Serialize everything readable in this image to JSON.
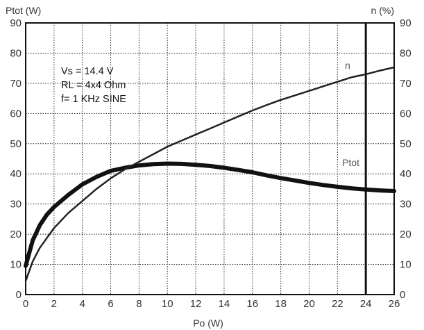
{
  "chart_data": {
    "type": "line",
    "title": "",
    "xlabel": "Po (W)",
    "ylabel_left": "Ptot (W)",
    "ylabel_right": "n (%)",
    "xlim": [
      0,
      26
    ],
    "ylim_left": [
      0,
      90
    ],
    "ylim_right": [
      0,
      90
    ],
    "x_ticks": [
      "0",
      "2",
      "4",
      "6",
      "8",
      "10",
      "12",
      "14",
      "16",
      "18",
      "20",
      "22",
      "24",
      "26"
    ],
    "y_ticks_left": [
      "0",
      "10",
      "20",
      "30",
      "40",
      "50",
      "60",
      "70",
      "80",
      "90"
    ],
    "y_ticks_right": [
      "0",
      "10",
      "20",
      "30",
      "40",
      "50",
      "60",
      "70",
      "80",
      "90"
    ],
    "grid": true,
    "grid_style": "dotted",
    "reference_line_x": 24,
    "annotations": [
      "Vs = 14.4 V",
      "RL = 4x4 Ohm",
      "f= 1 KHz SINE"
    ],
    "series": [
      {
        "name": "Ptot",
        "axis": "left",
        "color": "#111111",
        "points": [
          [
            0,
            9.5
          ],
          [
            0.5,
            18
          ],
          [
            1,
            23
          ],
          [
            1.5,
            26.5
          ],
          [
            2,
            29
          ],
          [
            3,
            33
          ],
          [
            4,
            36.5
          ],
          [
            5,
            39
          ],
          [
            6,
            41
          ],
          [
            7,
            42
          ],
          [
            8,
            42.8
          ],
          [
            9,
            43.2
          ],
          [
            10,
            43.4
          ],
          [
            11,
            43.3
          ],
          [
            12,
            43
          ],
          [
            13,
            42.6
          ],
          [
            14,
            42
          ],
          [
            15,
            41.3
          ],
          [
            16,
            40.5
          ],
          [
            17,
            39.5
          ],
          [
            18,
            38.6
          ],
          [
            19,
            37.8
          ],
          [
            20,
            37
          ],
          [
            21,
            36.3
          ],
          [
            22,
            35.7
          ],
          [
            23,
            35.2
          ],
          [
            24,
            34.8
          ],
          [
            25,
            34.5
          ],
          [
            26,
            34.3
          ]
        ]
      },
      {
        "name": "n",
        "axis": "right",
        "color": "#222222",
        "points": [
          [
            0,
            4.5
          ],
          [
            0.5,
            11
          ],
          [
            1,
            15.5
          ],
          [
            2,
            22
          ],
          [
            3,
            27
          ],
          [
            4,
            31
          ],
          [
            5,
            35
          ],
          [
            6,
            38.5
          ],
          [
            7,
            41.5
          ],
          [
            8,
            44
          ],
          [
            9,
            46.5
          ],
          [
            10,
            49
          ],
          [
            11,
            51
          ],
          [
            12,
            53
          ],
          [
            13,
            55
          ],
          [
            14,
            57
          ],
          [
            15,
            59
          ],
          [
            16,
            61
          ],
          [
            17,
            62.8
          ],
          [
            18,
            64.5
          ],
          [
            19,
            66
          ],
          [
            20,
            67.5
          ],
          [
            21,
            69
          ],
          [
            22,
            70.5
          ],
          [
            23,
            72
          ],
          [
            24,
            73
          ],
          [
            25,
            74.2
          ],
          [
            26,
            75.3
          ]
        ]
      }
    ],
    "curve_labels": {
      "n": "n",
      "Ptot": "Ptot"
    }
  }
}
